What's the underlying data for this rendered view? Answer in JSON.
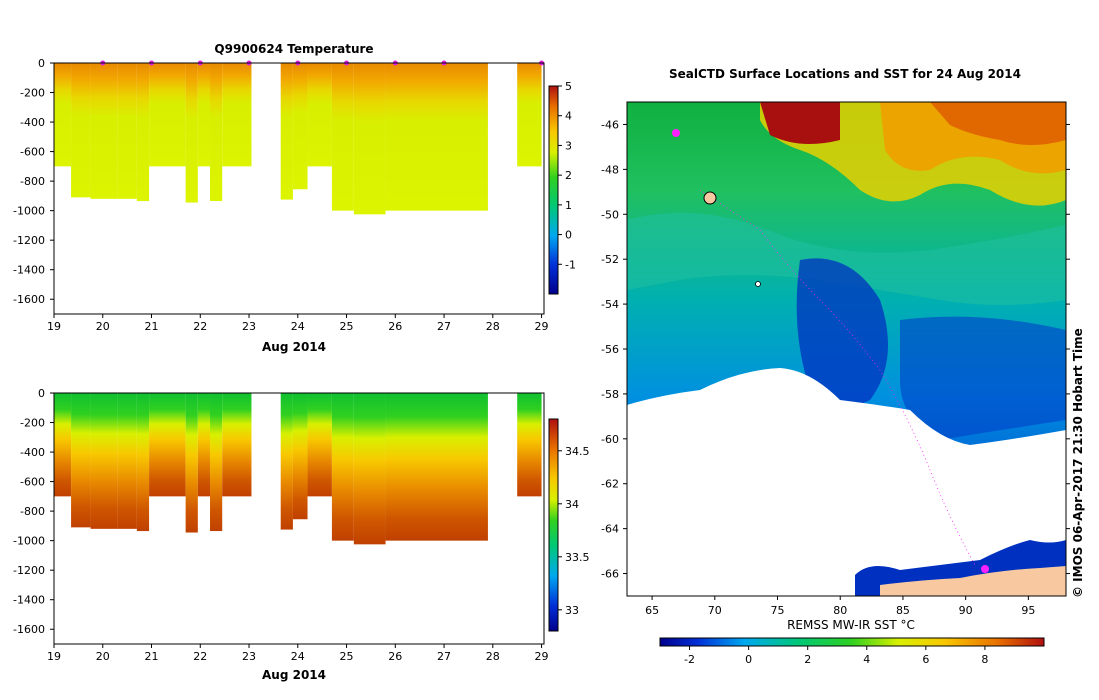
{
  "chart_data": [
    {
      "type": "heatmap",
      "title": "Q9900624  Temperature",
      "xlabel": "Aug 2014",
      "x_ticks": [
        "19",
        "20",
        "21",
        "22",
        "23",
        "24",
        "25",
        "26",
        "27",
        "28",
        "29"
      ],
      "xlim": [
        19,
        29.05
      ],
      "ylim": [
        -1700,
        0
      ],
      "y_ticks": [
        "0",
        "-200",
        "-400",
        "-600",
        "-800",
        "-1000",
        "-1200",
        "-1400",
        "-1600"
      ],
      "colorbar": {
        "range": [
          -2,
          5
        ],
        "ticks": [
          "5",
          "4",
          "3",
          "2",
          "1",
          "0",
          "-1"
        ]
      },
      "profile_markers": [
        "20",
        "21",
        "22",
        "23",
        "24",
        "25",
        "26",
        "27",
        "29"
      ],
      "profiles": [
        {
          "x0": 19.0,
          "x1": 19.35,
          "max_depth": 700
        },
        {
          "x0": 19.35,
          "x1": 19.75,
          "max_depth": 910
        },
        {
          "x0": 19.75,
          "x1": 20.3,
          "max_depth": 920
        },
        {
          "x0": 20.3,
          "x1": 20.7,
          "max_depth": 920
        },
        {
          "x0": 20.7,
          "x1": 20.95,
          "max_depth": 935
        },
        {
          "x0": 20.95,
          "x1": 21.7,
          "max_depth": 700
        },
        {
          "x0": 21.7,
          "x1": 21.95,
          "max_depth": 945
        },
        {
          "x0": 21.95,
          "x1": 22.2,
          "max_depth": 700
        },
        {
          "x0": 22.2,
          "x1": 22.45,
          "max_depth": 935
        },
        {
          "x0": 22.45,
          "x1": 23.05,
          "max_depth": 700
        },
        {
          "x0": 23.65,
          "x1": 23.9,
          "max_depth": 925
        },
        {
          "x0": 23.9,
          "x1": 24.2,
          "max_depth": 855
        },
        {
          "x0": 24.2,
          "x1": 24.7,
          "max_depth": 700
        },
        {
          "x0": 24.7,
          "x1": 25.15,
          "max_depth": 1000
        },
        {
          "x0": 25.15,
          "x1": 25.8,
          "max_depth": 1025
        },
        {
          "x0": 25.8,
          "x1": 27.9,
          "max_depth": 1000
        },
        {
          "x0": 28.5,
          "x1": 29.0,
          "max_depth": 700
        }
      ]
    },
    {
      "type": "heatmap",
      "title": "",
      "xlabel": "Aug 2014",
      "x_ticks": [
        "19",
        "20",
        "21",
        "22",
        "23",
        "24",
        "25",
        "26",
        "27",
        "28",
        "29"
      ],
      "xlim": [
        19,
        29.05
      ],
      "ylim": [
        -1700,
        0
      ],
      "y_ticks": [
        "0",
        "-200",
        "-400",
        "-600",
        "-800",
        "-1000",
        "-1200",
        "-1400",
        "-1600"
      ],
      "colorbar": {
        "range": [
          32.8,
          34.8
        ],
        "ticks": [
          "34.5",
          "34",
          "33.5",
          "33"
        ]
      }
    },
    {
      "type": "heatmap",
      "title": "SealCTD Surface Locations and SST for 24 Aug 2014",
      "xlim": [
        63,
        98
      ],
      "ylim": [
        -67,
        -45
      ],
      "x_ticks": [
        "65",
        "70",
        "75",
        "80",
        "85",
        "90",
        "95"
      ],
      "y_ticks": [
        "-46",
        "-48",
        "-50",
        "-52",
        "-54",
        "-56",
        "-58",
        "-60",
        "-62",
        "-64",
        "-66"
      ],
      "colorbar": {
        "label": "REMSS MW-IR SST °C",
        "range": [
          -3,
          10
        ],
        "ticks": [
          "-2",
          "0",
          "2",
          "4",
          "6",
          "8"
        ]
      },
      "credit": "© IMOS 06-Apr-2017 21:30 Hobart Time"
    }
  ]
}
